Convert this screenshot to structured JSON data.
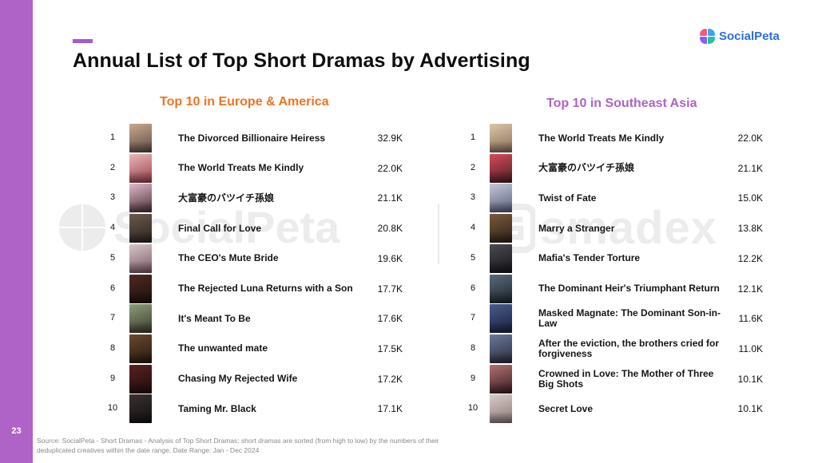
{
  "page_number": "23",
  "title": "Annual List of Top Short Dramas by Advertising",
  "logo": {
    "text": "SocialPeta",
    "colors": [
      "#f25a7d",
      "#3aa5f5",
      "#8b5cf6",
      "#22c3a6"
    ]
  },
  "watermark": {
    "left_text": "SocialPeta",
    "right_text": "smadex"
  },
  "sections": {
    "europe_america": {
      "title": "Top 10 in Europe & America",
      "color": "#f07320",
      "items": [
        {
          "rank": "1",
          "title": "The Divorced Billionaire Heiress",
          "count": "32.9K",
          "poster_colors": [
            "#c9a890",
            "#5e4a44"
          ]
        },
        {
          "rank": "2",
          "title": "The World Treats Me Kindly",
          "count": "22.0K",
          "poster_colors": [
            "#e6b8b8",
            "#9b3f4a"
          ]
        },
        {
          "rank": "3",
          "title": "大富豪のバツイチ孫娘",
          "count": "21.1K",
          "poster_colors": [
            "#e0b9c8",
            "#4a2f38"
          ]
        },
        {
          "rank": "4",
          "title": "Final Call for Love",
          "count": "20.8K",
          "poster_colors": [
            "#6a5a4c",
            "#2a2420"
          ]
        },
        {
          "rank": "5",
          "title": "The CEO's Mute Bride",
          "count": "19.6K",
          "poster_colors": [
            "#d8c6c8",
            "#7a5868"
          ]
        },
        {
          "rank": "6",
          "title": "The Rejected Luna Returns with a Son",
          "count": "17.7K",
          "poster_colors": [
            "#4f2a22",
            "#1c0f0c"
          ]
        },
        {
          "rank": "7",
          "title": "It's Meant To Be",
          "count": "17.6K",
          "poster_colors": [
            "#8b9c7a",
            "#3c3a2c"
          ]
        },
        {
          "rank": "8",
          "title": "The unwanted mate",
          "count": "17.5K",
          "poster_colors": [
            "#6b4a30",
            "#241810"
          ]
        },
        {
          "rank": "9",
          "title": "Chasing My Rejected Wife",
          "count": "17.2K",
          "poster_colors": [
            "#5a2020",
            "#1e0d0d"
          ]
        },
        {
          "rank": "10",
          "title": "Taming Mr. Black",
          "count": "17.1K",
          "poster_colors": [
            "#3a3030",
            "#121010"
          ]
        }
      ]
    },
    "southeast_asia": {
      "title": "Top 10 in Southeast Asia",
      "color": "#b063c6",
      "items": [
        {
          "rank": "1",
          "title": "The World Treats Me Kindly",
          "count": "22.0K",
          "poster_colors": [
            "#d9c7a8",
            "#8a6c58"
          ]
        },
        {
          "rank": "2",
          "title": "大富豪のバツイチ孫娘",
          "count": "21.1K",
          "poster_colors": [
            "#d84a5a",
            "#4a1e22"
          ]
        },
        {
          "rank": "3",
          "title": "Twist of Fate",
          "count": "15.0K",
          "poster_colors": [
            "#c4c8d8",
            "#5a5e7a"
          ]
        },
        {
          "rank": "4",
          "title": "Marry a Stranger",
          "count": "13.8K",
          "poster_colors": [
            "#7a5a3c",
            "#2c2016"
          ]
        },
        {
          "rank": "5",
          "title": "Mafia's Tender Torture",
          "count": "12.2K",
          "poster_colors": [
            "#4a4a50",
            "#15151a"
          ]
        },
        {
          "rank": "6",
          "title": "The Dominant Heir's Triumphant Return",
          "count": "12.1K",
          "poster_colors": [
            "#5a6a7a",
            "#1c232c"
          ]
        },
        {
          "rank": "7",
          "title": "Masked Magnate: The Dominant Son-in-Law",
          "count": "11.6K",
          "poster_colors": [
            "#4a5a8a",
            "#1a2040"
          ]
        },
        {
          "rank": "8",
          "title": "After the eviction, the brothers cried for forgiveness",
          "count": "11.0K",
          "poster_colors": [
            "#6a7a9a",
            "#2a2a3c"
          ]
        },
        {
          "rank": "9",
          "title": "Crowned in Love: The Mother of Three Big Shots",
          "count": "10.1K",
          "poster_colors": [
            "#b07070",
            "#3c1c22"
          ]
        },
        {
          "rank": "10",
          "title": "Secret Love",
          "count": "10.1K",
          "poster_colors": [
            "#d8ccc8",
            "#8a7878"
          ]
        }
      ]
    }
  },
  "source": "Source: SocialPeta - Short Dramas - Analysis of Top Short Dramas; short dramas are sorted (from high to low) by the numbers of their deduplicated creatives within the date range. Date Range: Jan - Dec 2024"
}
